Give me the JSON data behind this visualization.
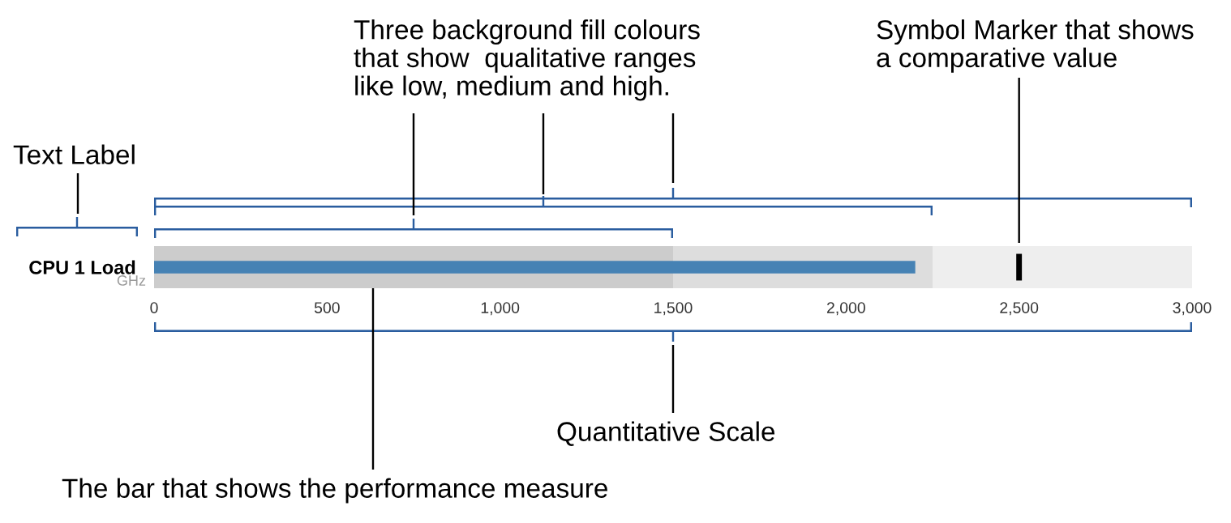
{
  "chart_data": {
    "type": "bar",
    "orientation": "horizontal",
    "categories": [
      "CPU 1 Load"
    ],
    "ylabel": "GHz",
    "values": [
      2200
    ],
    "color": "#4682b4",
    "xlim": [
      0,
      3000
    ],
    "xticks": [
      0,
      500,
      {
        "value": 1000,
        "label": "1,000"
      },
      {
        "value": 1500,
        "label": "1,500"
      },
      {
        "value": 2000,
        "label": "2,000"
      },
      {
        "value": 2500,
        "label": "2,500"
      },
      {
        "value": 3000,
        "label": "3,000"
      }
    ],
    "bands": [
      {
        "axis": "x",
        "from": 0,
        "to": 1500,
        "color": "#cccccc"
      },
      {
        "axis": "x",
        "from": 1500,
        "to": 2250,
        "color": "#dddddd"
      },
      {
        "axis": "x",
        "from": 2250,
        "to": 3000,
        "color": "#eeeeee"
      }
    ],
    "ref_lines": [
      {
        "axis": "x",
        "value": 2500,
        "color": "#000000"
      }
    ],
    "grid": false,
    "annotations": [
      "Text Label",
      "Three background fill colours\nthat show  qualitative ranges\nlike low, medium and high.",
      "Symbol Marker that shows\na comparative value",
      "Quantitative Scale",
      "The bar that shows the performance measure"
    ]
  }
}
